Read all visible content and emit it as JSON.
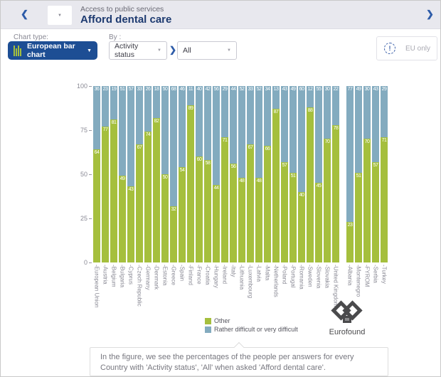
{
  "icons": {
    "chevron_left": "❮",
    "chevron_right": "❯",
    "chevron_sep": "❯",
    "caret_down": "▼",
    "info_mark": "!"
  },
  "header": {
    "breadcrumb": "Access to public services",
    "title": "Afford dental care"
  },
  "controls": {
    "chart_type_label": "Chart type:",
    "chart_type_value": "European bar chart",
    "by_label": "By :",
    "by_value": "Activity status",
    "filter_value": "All",
    "eu_only_label": "EU only"
  },
  "chart_data": {
    "type": "bar",
    "stacked": true,
    "percent_scale": true,
    "ylim": [
      0,
      100
    ],
    "yticks": [
      100,
      75,
      50,
      25,
      0
    ],
    "grid": false,
    "legend_position": "bottom",
    "legend": [
      "Other",
      "Rather difficult or very difficult"
    ],
    "colors": {
      "other": "#a5bf3d",
      "difficult": "#83abbf"
    },
    "gap_before_index": 29,
    "categories": [
      "European Union",
      "Austria",
      "Belgium",
      "Bulgaria",
      "Cyprus",
      "Czech Republic",
      "Germany",
      "Denmark",
      "Estonia",
      "Greece",
      "Spain",
      "Finland",
      "France",
      "Croatia",
      "Hungary",
      "Ireland",
      "Italy",
      "Lithuania",
      "Luxembourg",
      "Latvia",
      "Malta",
      "Netherlands",
      "Poland",
      "Portugal",
      "Romania",
      "Sweden",
      "Slovenia",
      "Slovakia",
      "United Kingdom",
      "Albania",
      "Montenegro",
      "FYROM",
      "Serbia",
      "Turkey"
    ],
    "series": [
      {
        "name": "Other",
        "values": [
          64,
          77,
          81,
          49,
          43,
          67,
          74,
          82,
          50,
          32,
          54,
          89,
          60,
          58,
          44,
          71,
          56,
          48,
          67,
          48,
          66,
          87,
          57,
          51,
          40,
          88,
          45,
          70,
          78,
          23,
          51,
          70,
          57,
          71
        ]
      },
      {
        "name": "Rather difficult or very difficult",
        "values": [
          36,
          23,
          19,
          51,
          57,
          33,
          26,
          18,
          50,
          68,
          46,
          11,
          40,
          42,
          56,
          29,
          44,
          52,
          33,
          52,
          34,
          13,
          43,
          49,
          60,
          12,
          55,
          30,
          22,
          77,
          49,
          30,
          43,
          29
        ]
      }
    ]
  },
  "branding": {
    "logo_text": "Eurofound"
  },
  "footer": {
    "text": "In the figure, we see the percentages of the people per answers for every Country with 'Activity status', 'All' when asked 'Afford dental care'."
  }
}
